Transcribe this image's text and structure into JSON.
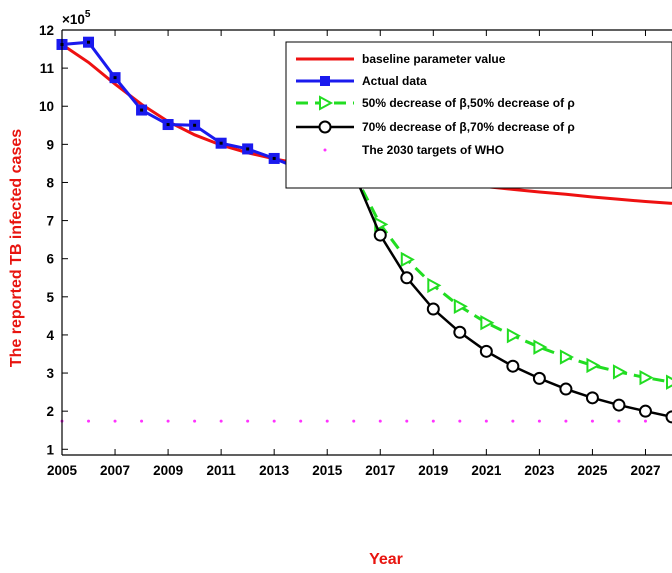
{
  "chart_data": {
    "type": "line",
    "title": "",
    "xlabel": "Year",
    "ylabel": "The reported TB infected cases",
    "y_exponent_label": "×10",
    "y_exponent_power": "5",
    "xlim": [
      2005,
      2028
    ],
    "ylim": [
      0.85,
      12
    ],
    "x_ticks": [
      2005,
      2007,
      2009,
      2011,
      2013,
      2015,
      2017,
      2019,
      2021,
      2023,
      2025,
      2027
    ],
    "y_ticks": [
      1,
      2,
      3,
      4,
      5,
      6,
      7,
      8,
      9,
      10,
      11,
      12
    ],
    "grid": false,
    "legend_position": "top-right",
    "colors": {
      "axis_labels": "#e8140f",
      "baseline": "#ee1111",
      "actual": "#1a1aee",
      "decrease50": "#22dd22",
      "decrease70": "#000000",
      "who": "#ff33ff"
    },
    "series": [
      {
        "name": "baseline parameter value",
        "style": "solid-line",
        "x": [
          2005,
          2006,
          2007,
          2008,
          2009,
          2010,
          2011,
          2012,
          2013,
          2014,
          2015,
          2016,
          2017,
          2018,
          2019,
          2020,
          2021,
          2022,
          2023,
          2024,
          2025,
          2026,
          2027,
          2028
        ],
        "values": [
          11.62,
          11.15,
          10.58,
          10.05,
          9.6,
          9.25,
          8.98,
          8.78,
          8.62,
          8.49,
          8.38,
          8.28,
          8.19,
          8.11,
          8.03,
          7.96,
          7.89,
          7.82,
          7.75,
          7.69,
          7.62,
          7.56,
          7.5,
          7.45
        ]
      },
      {
        "name": "Actual data",
        "style": "line-square",
        "x": [
          2005,
          2006,
          2007,
          2008,
          2009,
          2010,
          2011,
          2012,
          2013,
          2014,
          2015,
          2016
        ],
        "values": [
          11.62,
          11.68,
          10.75,
          9.9,
          9.52,
          9.5,
          9.03,
          8.88,
          8.63,
          8.35,
          8.35,
          8.25
        ]
      },
      {
        "name": "50% decrease of β,50% decrease of ρ",
        "style": "dashed-triangle",
        "x": [
          2016,
          2017,
          2018,
          2019,
          2020,
          2021,
          2022,
          2023,
          2024,
          2025,
          2026,
          2027,
          2028
        ],
        "values": [
          8.25,
          6.9,
          5.98,
          5.3,
          4.75,
          4.32,
          3.98,
          3.68,
          3.42,
          3.2,
          3.03,
          2.88,
          2.76
        ]
      },
      {
        "name": "70% decrease of β,70% decrease of ρ",
        "style": "solid-circle",
        "x": [
          2016,
          2017,
          2018,
          2019,
          2020,
          2021,
          2022,
          2023,
          2024,
          2025,
          2026,
          2027,
          2028
        ],
        "values": [
          8.25,
          6.62,
          5.5,
          4.68,
          4.07,
          3.57,
          3.18,
          2.86,
          2.58,
          2.35,
          2.16,
          2.0,
          1.85
        ]
      },
      {
        "name": "The 2030 targets of WHO",
        "style": "dotted",
        "x": [
          2005,
          2006,
          2007,
          2008,
          2009,
          2010,
          2011,
          2012,
          2013,
          2014,
          2015,
          2016,
          2017,
          2018,
          2019,
          2020,
          2021,
          2022,
          2023,
          2024,
          2025,
          2026,
          2027,
          2028
        ],
        "values": [
          1.74,
          1.74,
          1.74,
          1.74,
          1.74,
          1.74,
          1.74,
          1.74,
          1.74,
          1.74,
          1.74,
          1.74,
          1.74,
          1.74,
          1.74,
          1.74,
          1.74,
          1.74,
          1.74,
          1.74,
          1.74,
          1.74,
          1.74,
          1.74
        ]
      }
    ]
  }
}
